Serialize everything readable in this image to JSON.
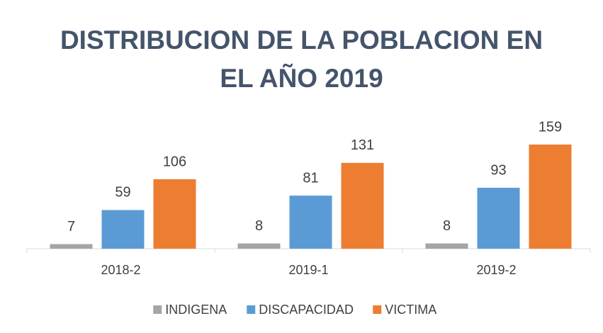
{
  "chart_data": {
    "type": "bar",
    "title": "DISTRIBUCION DE LA POBLACION EN EL AÑO 2019",
    "categories": [
      "2018-2",
      "2019-1",
      "2019-2"
    ],
    "series": [
      {
        "name": "INDIGENA",
        "color": "#a5a5a5",
        "values": [
          7,
          8,
          8
        ]
      },
      {
        "name": "DISCAPACIDAD",
        "color": "#5b9bd5",
        "values": [
          59,
          81,
          93
        ]
      },
      {
        "name": "VICTIMA",
        "color": "#ed7d31",
        "values": [
          106,
          131,
          159
        ]
      }
    ],
    "legend": "bottom"
  }
}
